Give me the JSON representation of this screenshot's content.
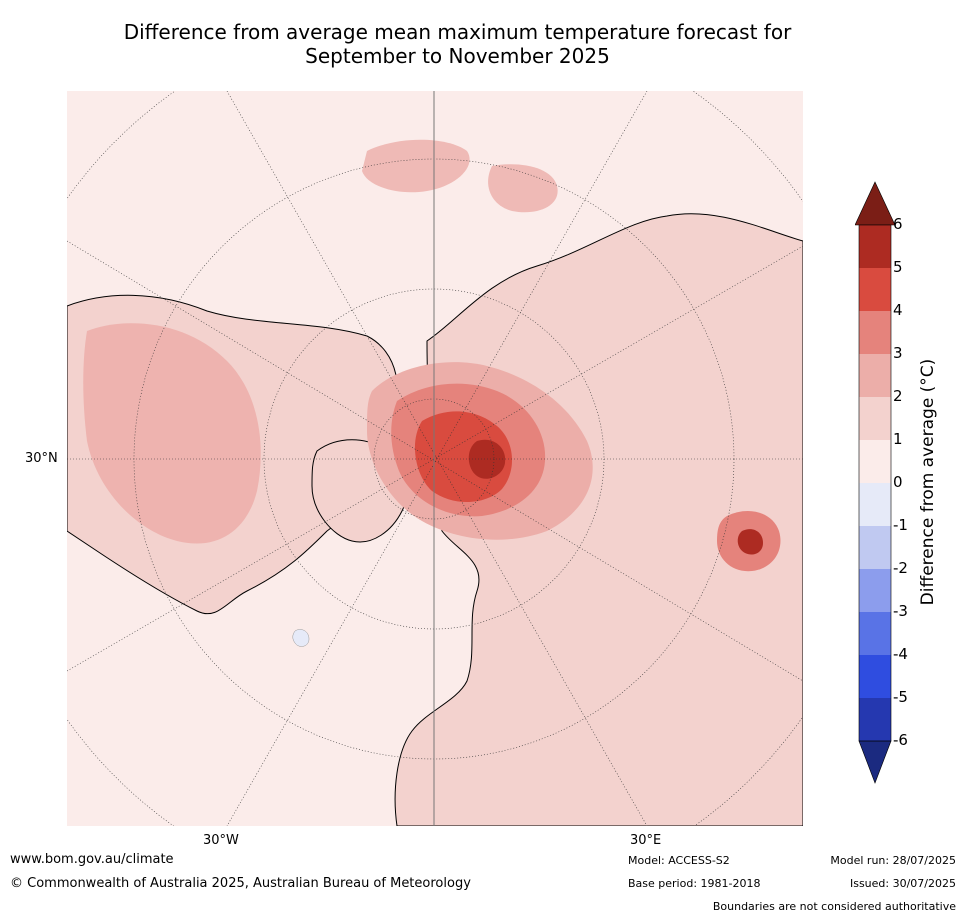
{
  "title": {
    "line1": "Difference from average mean maximum temperature forecast for",
    "line2": "September to November 2025"
  },
  "map": {
    "lat_label": "30°N",
    "lon_labels": [
      "30°W",
      "30°E"
    ],
    "land_color": "#f3d2ce",
    "ocean_color": "#fbecea"
  },
  "colorbar": {
    "label": "Difference from average (°C)",
    "ticks": [
      "6",
      "5",
      "4",
      "3",
      "2",
      "1",
      "0",
      "-1",
      "-2",
      "-3",
      "-4",
      "-5",
      "-6"
    ],
    "colors": {
      "over": "#7b1e16",
      "5_6": "#ad2b22",
      "4_5": "#d94b3f",
      "3_4": "#e5837c",
      "2_3": "#ecaea9",
      "1_2": "#f3d2ce",
      "0_1": "#fbecea",
      "m1_0": "#e6eaf8",
      "m2_m1": "#c0c9f1",
      "m3_m2": "#8c9ded",
      "m4_m3": "#5973e6",
      "m5_m4": "#2f4de0",
      "m6_m5": "#2538b0",
      "under": "#1b2a80"
    }
  },
  "footer": {
    "website": "www.bom.gov.au/climate",
    "copyright": "© Commonwealth of Australia 2025, Australian Bureau of Meteorology",
    "model": "Model: ACCESS-S2",
    "base_period": "Base period: 1981-2018",
    "model_run": "Model run: 28/07/2025",
    "issued": "Issued: 30/07/2025",
    "disclaimer": "Boundaries are not considered authoritative"
  }
}
